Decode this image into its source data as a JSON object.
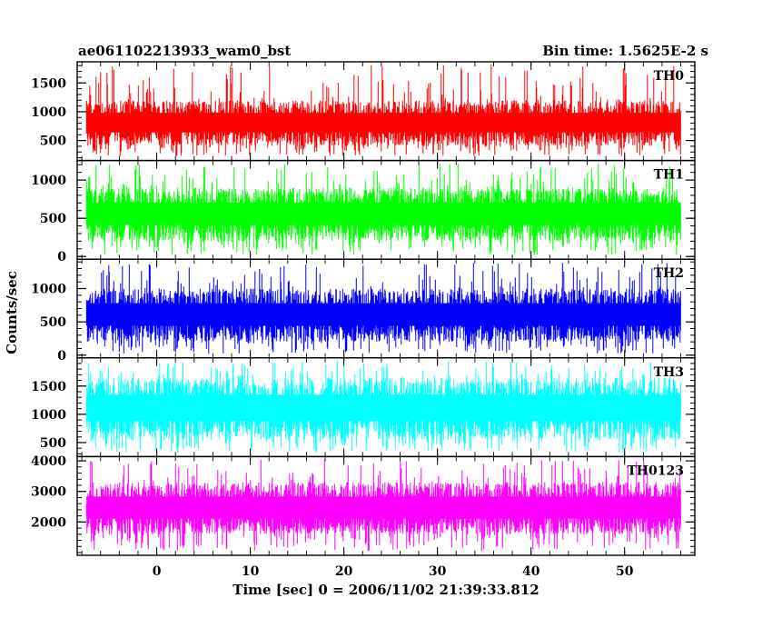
{
  "header": {
    "left_title": "ae061102213933_wam0_bst",
    "right_title": "Bin time: 1.5625E-2 s"
  },
  "chart_data": {
    "type": "line",
    "xlabel": "Time [sec] 0 = 2006/11/02 21:39:33.812",
    "ylabel": "Counts/sec",
    "xlim": [
      -8.5,
      57.5
    ],
    "x_ticks": [
      0,
      10,
      20,
      30,
      40,
      50
    ],
    "x_tick_labels": [
      "0",
      "10",
      "20",
      "30",
      "40",
      "50"
    ],
    "x_minor_step": 2,
    "data_x_range": [
      -7.5,
      56
    ],
    "bin_time": 0.015625,
    "series": [
      {
        "name": "TH0",
        "color": "#ff0000",
        "ylim": [
          200,
          1820
        ],
        "y_ticks": [
          500,
          1000,
          1500
        ],
        "y_minor_step": 100,
        "typical_range": [
          400,
          1200
        ],
        "min_level": 230,
        "max_level": 1820
      },
      {
        "name": "TH1",
        "color": "#00ff00",
        "ylim": [
          0,
          1220
        ],
        "y_ticks": [
          0,
          500,
          1000
        ],
        "y_minor_step": 100,
        "typical_range": [
          200,
          900
        ],
        "min_level": 20,
        "max_level": 1220
      },
      {
        "name": "TH2",
        "color": "#0000ff",
        "ylim": [
          0,
          1400
        ],
        "y_ticks": [
          0,
          500,
          1000
        ],
        "y_minor_step": 100,
        "typical_range": [
          200,
          1000
        ],
        "min_level": 20,
        "max_level": 1400
      },
      {
        "name": "TH3",
        "color": "#00ffff",
        "ylim": [
          300,
          1950
        ],
        "y_ticks": [
          500,
          1000,
          1500
        ],
        "y_minor_step": 100,
        "typical_range": [
          550,
          1650
        ],
        "min_level": 320,
        "max_level": 1950
      },
      {
        "name": "TH0123",
        "color": "#ff00ff",
        "ylim": [
          1000,
          4050
        ],
        "y_ticks": [
          2000,
          3000,
          4000
        ],
        "y_minor_step": 200,
        "typical_range": [
          1600,
          3300
        ],
        "min_level": 1050,
        "max_level": 4050
      }
    ]
  }
}
